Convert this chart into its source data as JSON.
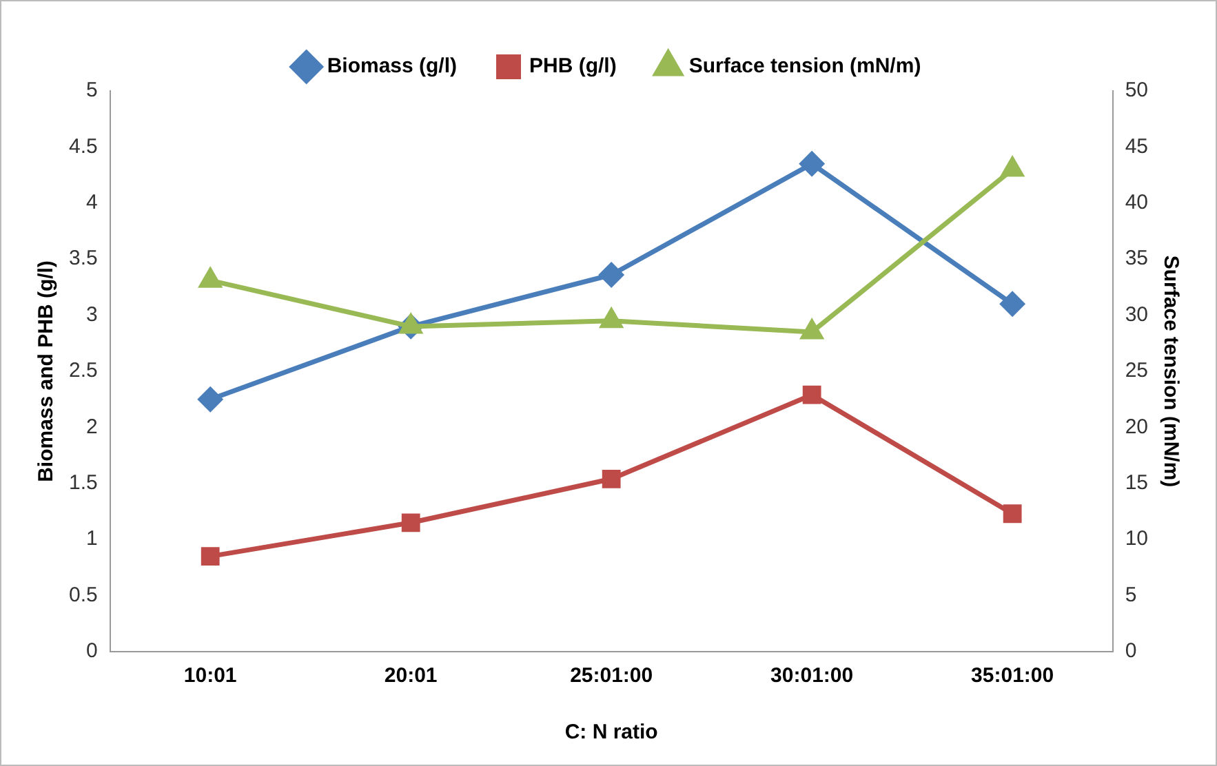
{
  "chart_data": {
    "type": "line",
    "xlabel": "C: N ratio",
    "ylabel": "Biomass and PHB (g/l)",
    "y2label": "Surface tension (mN/m)",
    "categories": [
      "10:01",
      "20:01",
      "25:01:00",
      "30:01:00",
      "35:01:00"
    ],
    "series": [
      {
        "name": "Biomass (g/l)",
        "color": "#4a7ebb",
        "marker": "diamond",
        "values": [
          2.25,
          2.9,
          3.36,
          4.35,
          3.1
        ]
      },
      {
        "name": "PHB (g/l)",
        "color": "#be4b48",
        "marker": "square",
        "values": [
          0.85,
          1.15,
          1.54,
          2.29,
          1.23
        ]
      },
      {
        "name": "Surface tension (mN/m)",
        "color": "#98b954",
        "marker": "triangle",
        "axis": "y2",
        "values": [
          33.1,
          29,
          29.5,
          28.5,
          43
        ]
      }
    ],
    "ylim": [
      0,
      5
    ],
    "yticks": [
      0,
      0.5,
      1,
      1.5,
      2,
      2.5,
      3,
      3.5,
      4,
      4.5,
      5
    ],
    "y2lim": [
      0,
      50
    ],
    "y2ticks": [
      0,
      5,
      10,
      15,
      20,
      25,
      30,
      35,
      40,
      45,
      50
    ],
    "grid": false,
    "legend": "top",
    "line_style": "solid"
  }
}
